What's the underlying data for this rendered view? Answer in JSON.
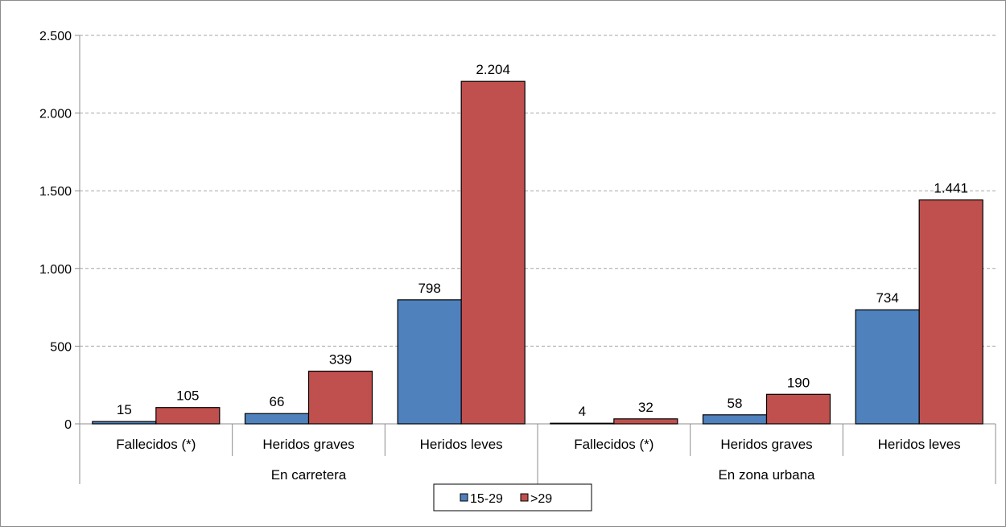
{
  "chart_data": {
    "type": "bar",
    "title": "",
    "xlabel": "",
    "ylabel": "",
    "ylim": [
      0,
      2500
    ],
    "yticks": [
      0,
      500,
      1000,
      1500,
      2000,
      2500
    ],
    "ytick_labels": [
      "0",
      "500",
      "1.000",
      "1.500",
      "2.000",
      "2.500"
    ],
    "grid": true,
    "legend_position": "bottom",
    "groups": [
      {
        "label": "En carretera",
        "categories": [
          "Fallecidos (*)",
          "Heridos graves",
          "Heridos leves"
        ]
      },
      {
        "label": "En zona urbana",
        "categories": [
          "Fallecidos (*)",
          "Heridos graves",
          "Heridos leves"
        ]
      }
    ],
    "categories": [
      "Fallecidos (*)",
      "Heridos graves",
      "Heridos leves",
      "Fallecidos (*)",
      "Heridos graves",
      "Heridos leves"
    ],
    "series": [
      {
        "name": "15-29",
        "color": "#4f81bd",
        "values": [
          15,
          66,
          798,
          4,
          58,
          734
        ],
        "labels": [
          "15",
          "66",
          "798",
          "4",
          "58",
          "734"
        ]
      },
      {
        "name": ">29",
        "color": "#c0504d",
        "values": [
          105,
          339,
          2204,
          32,
          190,
          1441
        ],
        "labels": [
          "105",
          "339",
          "2.204",
          "32",
          "190",
          "1.441"
        ]
      }
    ]
  }
}
